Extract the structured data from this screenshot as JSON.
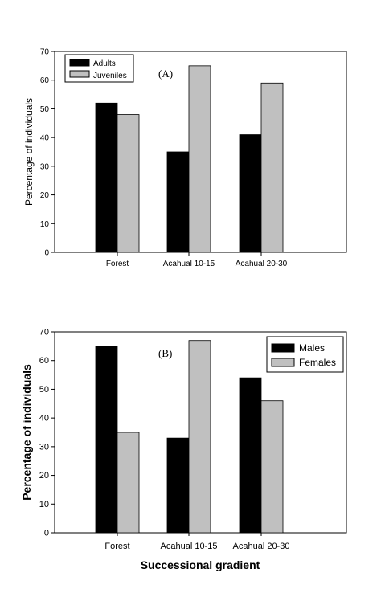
{
  "chart_data": [
    {
      "type": "bar",
      "panel_label": "(A)",
      "categories": [
        "Forest",
        "Acahual 10-15",
        "Acahual 20-30"
      ],
      "series": [
        {
          "name": "Adults",
          "values": [
            52,
            35,
            41
          ],
          "color": "#000000"
        },
        {
          "name": "Juveniles",
          "values": [
            48,
            65,
            59
          ],
          "color": "#c0c0c0"
        }
      ],
      "ylabel": "Percentage of individuals",
      "xlabel": "",
      "ylim": [
        0,
        70
      ],
      "yticks": [
        0,
        10,
        20,
        30,
        40,
        50,
        60,
        70
      ],
      "legend_position": "top-left",
      "grid": false
    },
    {
      "type": "bar",
      "panel_label": "(B)",
      "categories": [
        "Forest",
        "Acahual 10-15",
        "Acahual 20-30"
      ],
      "series": [
        {
          "name": "Males",
          "values": [
            65,
            33,
            54
          ],
          "color": "#000000"
        },
        {
          "name": "Females",
          "values": [
            35,
            67,
            46
          ],
          "color": "#c0c0c0"
        }
      ],
      "ylabel": "Percentage of individuals",
      "xlabel": "Successional gradient",
      "ylim": [
        0,
        70
      ],
      "yticks": [
        0,
        10,
        20,
        30,
        40,
        50,
        60,
        70
      ],
      "legend_position": "top-right",
      "grid": false
    }
  ]
}
